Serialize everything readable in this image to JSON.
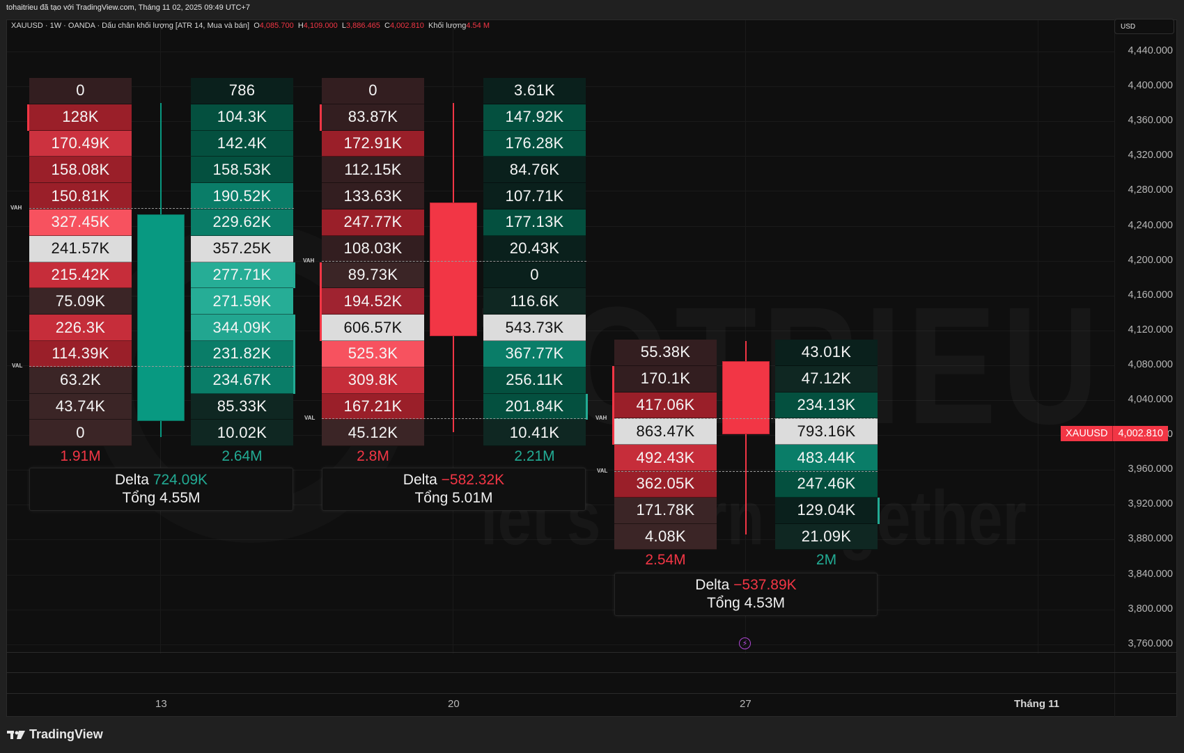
{
  "header": {
    "attribution": "tohaitrieu đã tạo với TradingView.com, Tháng 11 02, 2025 09:49 UTC+7"
  },
  "legend": {
    "symbol_info": "XAUUSD · 1W · OANDA · Dấu chân khối lượng [ATR 14, Mua và bán]",
    "o_label": "O",
    "o_value": "4,085.700",
    "h_label": "H",
    "h_value": "4,109.000",
    "l_label": "L",
    "l_value": "3,886.465",
    "c_label": "C",
    "c_value": "4,002.810",
    "vol_label": "Khối lượng",
    "vol_value": "4.54 M"
  },
  "price_axis": {
    "currency": "USD",
    "ticks": [
      "4,440.000",
      "4,400.000",
      "4,360.000",
      "4,320.000",
      "4,280.000",
      "4,240.000",
      "4,200.000",
      "4,160.000",
      "4,120.000",
      "4,080.000",
      "4,040.000",
      "4,000.000",
      "3,960.000",
      "3,920.000",
      "3,880.000",
      "3,840.000",
      "3,800.000",
      "3,760.000"
    ],
    "last_price_symbol": "XAUUSD",
    "last_price_value": "4,002.810"
  },
  "time_axis": {
    "labels": [
      "13",
      "20",
      "27",
      "Tháng 11"
    ]
  },
  "footer": {
    "brand": "TradingView"
  },
  "labels": {
    "vah": "VAH",
    "val": "VAL",
    "delta": "Delta",
    "total": "Tổng"
  },
  "colors": {
    "up": "#089981",
    "down": "#f23645",
    "poc": "#dcdcdc",
    "background": "#0f0f0f"
  },
  "clusters": [
    {
      "sell": [
        "0",
        "128K",
        "170.49K",
        "158.08K",
        "150.81K",
        "327.45K",
        "241.57K",
        "215.42K",
        "75.09K",
        "226.3K",
        "114.39K",
        "63.2K",
        "43.74K",
        "0"
      ],
      "buy": [
        "786",
        "104.3K",
        "142.4K",
        "158.53K",
        "190.52K",
        "229.62K",
        "357.25K",
        "277.71K",
        "271.59K",
        "344.09K",
        "231.82K",
        "234.67K",
        "85.33K",
        "10.02K"
      ],
      "sell_total": "1.91M",
      "buy_total": "2.64M",
      "delta": "724.09K",
      "total": "4.55M"
    },
    {
      "sell": [
        "0",
        "83.87K",
        "172.91K",
        "112.15K",
        "133.63K",
        "247.77K",
        "108.03K",
        "89.73K",
        "194.52K",
        "606.57K",
        "525.3K",
        "309.8K",
        "167.21K",
        "45.12K"
      ],
      "buy": [
        "3.61K",
        "147.92K",
        "176.28K",
        "84.76K",
        "107.71K",
        "177.13K",
        "20.43K",
        "0",
        "116.6K",
        "543.73K",
        "367.77K",
        "256.11K",
        "201.84K",
        "10.41K"
      ],
      "sell_total": "2.8M",
      "buy_total": "2.21M",
      "delta": "−582.32K",
      "total": "5.01M"
    },
    {
      "sell": [
        "55.38K",
        "170.1K",
        "417.06K",
        "863.47K",
        "492.43K",
        "362.05K",
        "171.78K",
        "4.08K"
      ],
      "buy": [
        "43.01K",
        "47.12K",
        "234.13K",
        "793.16K",
        "483.44K",
        "247.46K",
        "129.04K",
        "21.09K"
      ],
      "sell_total": "2.54M",
      "buy_total": "2M",
      "delta": "−537.89K",
      "total": "4.53M"
    }
  ],
  "watermark": {
    "line1": "TOTRIEU",
    "line2": "let's learn together"
  },
  "chart_data": {
    "type": "candlestick-footprint",
    "title": "XAUUSD · 1W · OANDA · Dấu chân khối lượng [ATR 14, Mua và bán]",
    "xlabel": "",
    "ylabel": "USD",
    "x": [
      "13",
      "20",
      "27"
    ],
    "ylim": [
      3740,
      4460
    ],
    "ohlc_current": {
      "open": 4085.7,
      "high": 4109.0,
      "low": 3886.465,
      "close": 4002.81,
      "volume": "4.54M"
    },
    "candles": [
      {
        "week": "13",
        "open": 3960,
        "high": 4380,
        "low": 3945,
        "close": 4250,
        "direction": "up"
      },
      {
        "week": "20",
        "open": 4265,
        "high": 4380,
        "low": 4000,
        "close": 4110,
        "direction": "down"
      },
      {
        "week": "27",
        "open": 4085.7,
        "high": 4109.0,
        "low": 3886.465,
        "close": 4002.81,
        "direction": "down"
      }
    ],
    "footprint": [
      {
        "week": "13",
        "sell_total": "1.91M",
        "buy_total": "2.64M",
        "delta": "724.09K",
        "total": "4.55M",
        "poc_sell": "241.57K",
        "poc_buy": "357.25K"
      },
      {
        "week": "20",
        "sell_total": "2.8M",
        "buy_total": "2.21M",
        "delta": "-582.32K",
        "total": "5.01M",
        "poc_sell": "606.57K",
        "poc_buy": "543.73K"
      },
      {
        "week": "27",
        "sell_total": "2.54M",
        "buy_total": "2M",
        "delta": "-537.89K",
        "total": "4.53M",
        "poc_sell": "863.47K",
        "poc_buy": "793.16K"
      }
    ],
    "grid": true,
    "legend_position": "top-left"
  }
}
